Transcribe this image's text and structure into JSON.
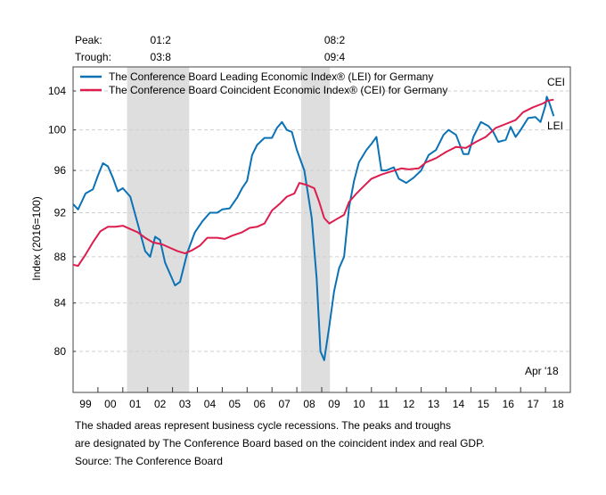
{
  "chart_data": {
    "type": "line",
    "yscale": "log",
    "ylabel": "Index (2016=100)",
    "ylim": [
      77.5,
      107.5
    ],
    "xlim": [
      1999.0,
      2019.0
    ],
    "yticks": [
      80,
      84,
      88,
      92,
      96,
      100,
      104
    ],
    "xtick_labels": [
      "99",
      "00",
      "01",
      "02",
      "03",
      "04",
      "05",
      "06",
      "07",
      "08",
      "09",
      "10",
      "11",
      "12",
      "13",
      "14",
      "15",
      "16",
      "17",
      "18"
    ],
    "grid": true,
    "legend_position": "top-left",
    "annotation": "Apr '18",
    "end_labels": {
      "cei": "CEI",
      "lei": "LEI"
    },
    "recessions": [
      {
        "peak_label": "01:2",
        "trough_label": "03:8",
        "start": 2001.17,
        "end": 2003.67
      },
      {
        "peak_label": "08:2",
        "trough_label": "09:4",
        "start": 2008.17,
        "end": 2009.33
      }
    ],
    "peak_header": "Peak:",
    "trough_header": "Trough:",
    "series": [
      {
        "name": "The Conference Board Leading Economic Index® (LEI) for Germany",
        "key": "lei",
        "color": "#0b72b5",
        "points": [
          [
            1999.0,
            92.8
          ],
          [
            1999.2,
            92.3
          ],
          [
            1999.5,
            93.8
          ],
          [
            1999.8,
            94.2
          ],
          [
            2000.0,
            95.5
          ],
          [
            2000.2,
            96.7
          ],
          [
            2000.4,
            96.4
          ],
          [
            2000.6,
            95.3
          ],
          [
            2000.8,
            94.0
          ],
          [
            2001.0,
            94.3
          ],
          [
            2001.3,
            93.5
          ],
          [
            2001.6,
            91.0
          ],
          [
            2001.9,
            88.5
          ],
          [
            2002.1,
            88.0
          ],
          [
            2002.3,
            89.8
          ],
          [
            2002.5,
            89.5
          ],
          [
            2002.7,
            87.5
          ],
          [
            2002.9,
            86.5
          ],
          [
            2003.1,
            85.5
          ],
          [
            2003.3,
            85.8
          ],
          [
            2003.6,
            88.4
          ],
          [
            2003.9,
            90.2
          ],
          [
            2004.2,
            91.2
          ],
          [
            2004.5,
            92.0
          ],
          [
            2004.8,
            92.0
          ],
          [
            2005.0,
            92.3
          ],
          [
            2005.3,
            92.4
          ],
          [
            2005.6,
            93.4
          ],
          [
            2005.8,
            94.3
          ],
          [
            2006.0,
            95.0
          ],
          [
            2006.2,
            97.5
          ],
          [
            2006.4,
            98.5
          ],
          [
            2006.7,
            99.2
          ],
          [
            2007.0,
            99.2
          ],
          [
            2007.2,
            100.2
          ],
          [
            2007.4,
            100.8
          ],
          [
            2007.6,
            100.0
          ],
          [
            2007.8,
            99.8
          ],
          [
            2008.0,
            98.0
          ],
          [
            2008.3,
            96.0
          ],
          [
            2008.6,
            91.5
          ],
          [
            2008.8,
            86.0
          ],
          [
            2008.95,
            80.0
          ],
          [
            2009.1,
            79.3
          ],
          [
            2009.3,
            82.0
          ],
          [
            2009.5,
            85.0
          ],
          [
            2009.7,
            87.0
          ],
          [
            2009.9,
            88.0
          ],
          [
            2010.1,
            92.5
          ],
          [
            2010.3,
            95.0
          ],
          [
            2010.5,
            96.8
          ],
          [
            2010.8,
            98.0
          ],
          [
            2011.0,
            98.6
          ],
          [
            2011.2,
            99.3
          ],
          [
            2011.4,
            96.0
          ],
          [
            2011.6,
            96.0
          ],
          [
            2011.9,
            96.3
          ],
          [
            2012.1,
            95.2
          ],
          [
            2012.4,
            94.8
          ],
          [
            2012.7,
            95.3
          ],
          [
            2013.0,
            96.0
          ],
          [
            2013.3,
            97.5
          ],
          [
            2013.6,
            98.0
          ],
          [
            2013.9,
            99.5
          ],
          [
            2014.1,
            100.0
          ],
          [
            2014.4,
            99.5
          ],
          [
            2014.7,
            97.6
          ],
          [
            2014.9,
            97.6
          ],
          [
            2015.1,
            99.3
          ],
          [
            2015.4,
            100.8
          ],
          [
            2015.7,
            100.4
          ],
          [
            2015.9,
            99.8
          ],
          [
            2016.1,
            98.8
          ],
          [
            2016.4,
            99.0
          ],
          [
            2016.6,
            100.3
          ],
          [
            2016.8,
            99.3
          ],
          [
            2017.0,
            100.0
          ],
          [
            2017.3,
            101.2
          ],
          [
            2017.6,
            101.3
          ],
          [
            2017.8,
            100.8
          ],
          [
            2018.0,
            102.5
          ],
          [
            2018.05,
            103.4
          ],
          [
            2018.15,
            102.8
          ],
          [
            2018.33,
            101.4
          ]
        ]
      },
      {
        "name": "The Conference Board Coincident Economic Index® (CEI) for Germany",
        "key": "cei",
        "color": "#dc1e4e",
        "points": [
          [
            1999.0,
            87.3
          ],
          [
            1999.2,
            87.2
          ],
          [
            1999.5,
            88.2
          ],
          [
            1999.8,
            89.3
          ],
          [
            2000.1,
            90.3
          ],
          [
            2000.4,
            90.7
          ],
          [
            2000.7,
            90.7
          ],
          [
            2001.0,
            90.8
          ],
          [
            2001.3,
            90.5
          ],
          [
            2001.6,
            90.2
          ],
          [
            2001.9,
            89.7
          ],
          [
            2002.2,
            89.3
          ],
          [
            2002.6,
            89.1
          ],
          [
            2002.9,
            88.8
          ],
          [
            2003.2,
            88.5
          ],
          [
            2003.5,
            88.3
          ],
          [
            2003.8,
            88.6
          ],
          [
            2004.1,
            89.0
          ],
          [
            2004.4,
            89.7
          ],
          [
            2004.8,
            89.7
          ],
          [
            2005.1,
            89.6
          ],
          [
            2005.4,
            89.9
          ],
          [
            2005.8,
            90.2
          ],
          [
            2006.1,
            90.6
          ],
          [
            2006.4,
            90.7
          ],
          [
            2006.7,
            91.0
          ],
          [
            2007.0,
            92.2
          ],
          [
            2007.3,
            92.8
          ],
          [
            2007.6,
            93.5
          ],
          [
            2007.9,
            93.8
          ],
          [
            2008.1,
            94.8
          ],
          [
            2008.4,
            94.6
          ],
          [
            2008.7,
            94.3
          ],
          [
            2008.9,
            93.0
          ],
          [
            2009.1,
            91.5
          ],
          [
            2009.3,
            91.0
          ],
          [
            2009.6,
            91.4
          ],
          [
            2009.9,
            91.8
          ],
          [
            2010.1,
            93.0
          ],
          [
            2010.4,
            93.8
          ],
          [
            2010.7,
            94.5
          ],
          [
            2011.0,
            95.2
          ],
          [
            2011.4,
            95.6
          ],
          [
            2011.8,
            95.9
          ],
          [
            2012.2,
            96.2
          ],
          [
            2012.5,
            96.1
          ],
          [
            2012.9,
            96.2
          ],
          [
            2013.2,
            96.8
          ],
          [
            2013.6,
            97.2
          ],
          [
            2014.0,
            97.8
          ],
          [
            2014.4,
            98.3
          ],
          [
            2014.8,
            98.2
          ],
          [
            2015.2,
            98.8
          ],
          [
            2015.6,
            99.3
          ],
          [
            2016.0,
            100.2
          ],
          [
            2016.4,
            100.6
          ],
          [
            2016.8,
            101.0
          ],
          [
            2017.1,
            101.8
          ],
          [
            2017.5,
            102.3
          ],
          [
            2017.9,
            102.7
          ],
          [
            2018.1,
            103.0
          ],
          [
            2018.33,
            103.1
          ]
        ]
      }
    ]
  },
  "footer": {
    "line1": "The shaded areas represent business cycle recessions. The peaks and troughs",
    "line2": "are designated by The Conference Board based on the coincident index and real GDP.",
    "source": "Source: The Conference Board"
  }
}
